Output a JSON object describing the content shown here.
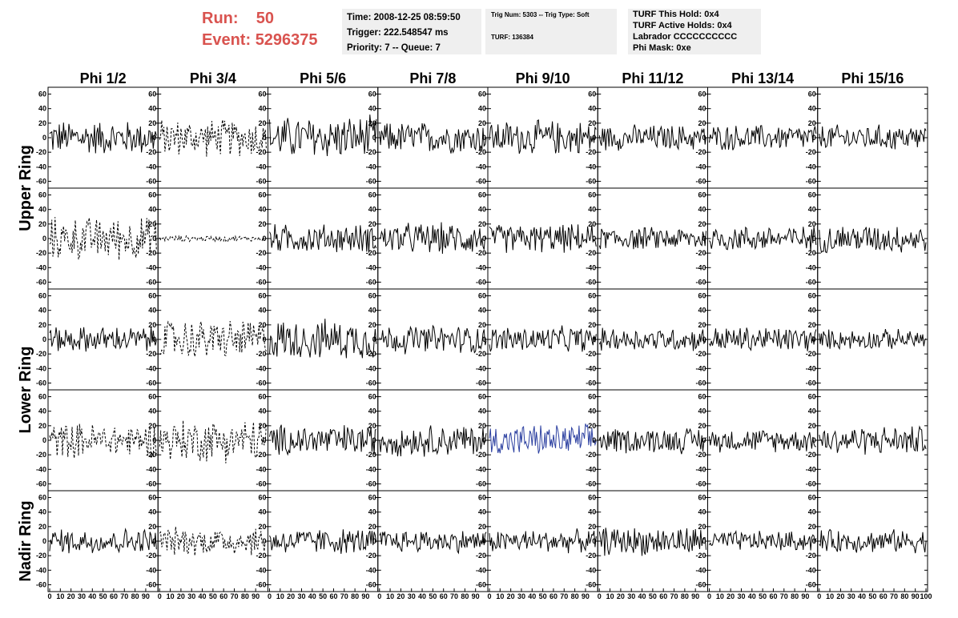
{
  "header": {
    "run_label": "Run:",
    "run_value": "50",
    "event_label": "Event:",
    "event_value": "5296375",
    "info1": {
      "time": "Time: 2008-12-25 08:59:50",
      "trigger": "Trigger: 222.548547 ms",
      "priority": "Priority: 7 -- Queue: 7"
    },
    "info2": {
      "trig": "Trig Num: 5303 -- Trig Type: Soft",
      "turf": "TURF: 136384"
    },
    "info3": {
      "hold": "TURF This Hold: 0x4",
      "active": "TURF Active Holds: 0x4",
      "labrador": "Labrador CCCCCCCCCC",
      "phimask": "Phi Mask: 0xe"
    }
  },
  "chart_data": {
    "type": "line",
    "columns": [
      "Phi 1/2",
      "Phi 3/4",
      "Phi 5/6",
      "Phi 7/8",
      "Phi 9/10",
      "Phi 11/12",
      "Phi 13/14",
      "Phi 15/16"
    ],
    "ring_labels": [
      {
        "label": "Upper Ring",
        "rows": [
          0,
          1
        ]
      },
      {
        "label": "Lower Ring",
        "rows": [
          2,
          3
        ]
      },
      {
        "label": "Nadir Ring",
        "rows": [
          4
        ]
      }
    ],
    "ylim": [
      -65,
      65
    ],
    "xlim": [
      0,
      100
    ],
    "yticks": [
      -60,
      -40,
      -20,
      0,
      20,
      40,
      60
    ],
    "xticks": [
      0,
      10,
      20,
      30,
      40,
      50,
      60,
      70,
      80,
      90,
      100
    ],
    "colors": {
      "solid": "#000000",
      "highlight": "#2b3fa0"
    },
    "series_note": "Each panel shows a noise-like waveform of ~100 samples; amplitudes estimated per panel.",
    "panels": [
      {
        "row": 0,
        "col": 0,
        "style": "solid",
        "amp": 24
      },
      {
        "row": 0,
        "col": 1,
        "style": "dashed",
        "amp": 26
      },
      {
        "row": 0,
        "col": 2,
        "style": "solid",
        "amp": 30
      },
      {
        "row": 0,
        "col": 3,
        "style": "solid",
        "amp": 22
      },
      {
        "row": 0,
        "col": 4,
        "style": "solid",
        "amp": 24
      },
      {
        "row": 0,
        "col": 5,
        "style": "solid",
        "amp": 18
      },
      {
        "row": 0,
        "col": 6,
        "style": "solid",
        "amp": 18
      },
      {
        "row": 0,
        "col": 7,
        "style": "solid",
        "amp": 18
      },
      {
        "row": 1,
        "col": 0,
        "style": "dashed",
        "amp": 30
      },
      {
        "row": 1,
        "col": 1,
        "style": "dashed",
        "amp": 4
      },
      {
        "row": 1,
        "col": 2,
        "style": "solid",
        "amp": 20
      },
      {
        "row": 1,
        "col": 3,
        "style": "solid",
        "amp": 22
      },
      {
        "row": 1,
        "col": 4,
        "style": "solid",
        "amp": 20
      },
      {
        "row": 1,
        "col": 5,
        "style": "solid",
        "amp": 16
      },
      {
        "row": 1,
        "col": 6,
        "style": "solid",
        "amp": 18
      },
      {
        "row": 1,
        "col": 7,
        "style": "solid",
        "amp": 20
      },
      {
        "row": 2,
        "col": 0,
        "style": "solid",
        "amp": 18
      },
      {
        "row": 2,
        "col": 1,
        "style": "dashed",
        "amp": 28
      },
      {
        "row": 2,
        "col": 2,
        "style": "solid",
        "amp": 28
      },
      {
        "row": 2,
        "col": 3,
        "style": "solid",
        "amp": 20
      },
      {
        "row": 2,
        "col": 4,
        "style": "solid",
        "amp": 18
      },
      {
        "row": 2,
        "col": 5,
        "style": "solid",
        "amp": 16
      },
      {
        "row": 2,
        "col": 6,
        "style": "solid",
        "amp": 18
      },
      {
        "row": 2,
        "col": 7,
        "style": "solid",
        "amp": 14
      },
      {
        "row": 3,
        "col": 0,
        "style": "dashed",
        "amp": 24
      },
      {
        "row": 3,
        "col": 1,
        "style": "dashed",
        "amp": 30
      },
      {
        "row": 3,
        "col": 2,
        "style": "solid",
        "amp": 22
      },
      {
        "row": 3,
        "col": 3,
        "style": "solid",
        "amp": 22
      },
      {
        "row": 3,
        "col": 4,
        "style": "highlight",
        "amp": 22
      },
      {
        "row": 3,
        "col": 5,
        "style": "solid",
        "amp": 18
      },
      {
        "row": 3,
        "col": 6,
        "style": "solid",
        "amp": 16
      },
      {
        "row": 3,
        "col": 7,
        "style": "solid",
        "amp": 20
      },
      {
        "row": 4,
        "col": 0,
        "style": "solid",
        "amp": 18
      },
      {
        "row": 4,
        "col": 1,
        "style": "dashed",
        "amp": 20
      },
      {
        "row": 4,
        "col": 2,
        "style": "solid",
        "amp": 18
      },
      {
        "row": 4,
        "col": 3,
        "style": "solid",
        "amp": 16
      },
      {
        "row": 4,
        "col": 4,
        "style": "solid",
        "amp": 16
      },
      {
        "row": 4,
        "col": 5,
        "style": "solid",
        "amp": 20
      },
      {
        "row": 4,
        "col": 6,
        "style": "solid",
        "amp": 14
      },
      {
        "row": 4,
        "col": 7,
        "style": "solid",
        "amp": 16
      }
    ]
  }
}
